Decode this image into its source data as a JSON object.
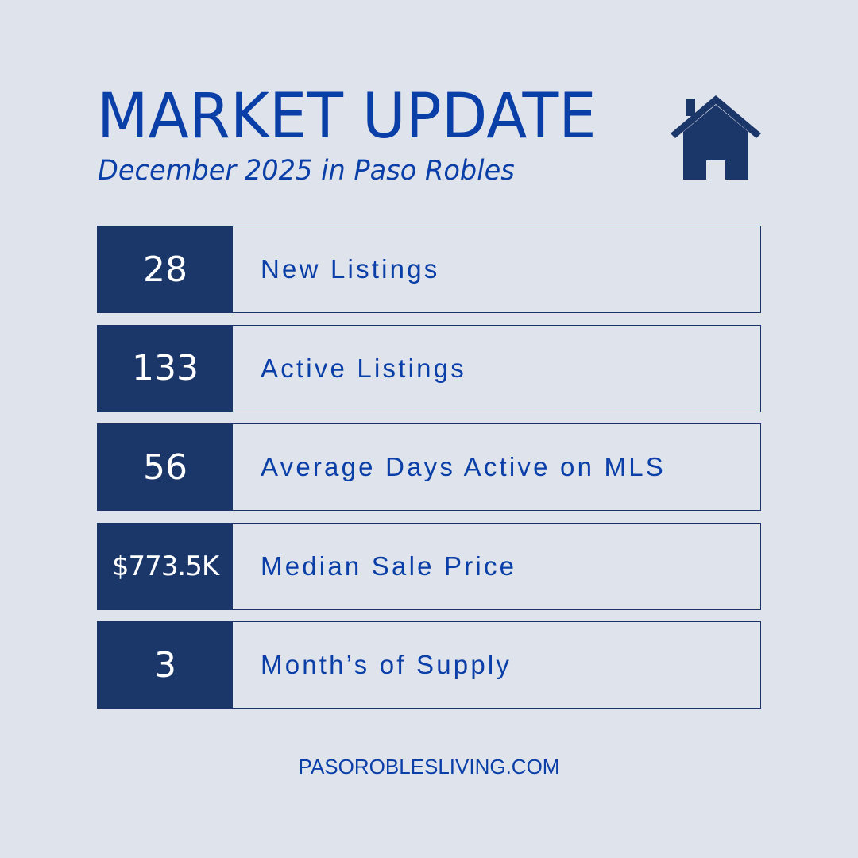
{
  "header": {
    "title": "MARKET UPDATE",
    "subtitle": "December 2025 in Paso Robles",
    "icon": "house-icon"
  },
  "stats": [
    {
      "value": "28",
      "label": "New Listings"
    },
    {
      "value": "133",
      "label": "Active Listings"
    },
    {
      "value": "56",
      "label": "Average Days Active on MLS"
    },
    {
      "value": "$773.5K",
      "label": "Median Sale Price"
    },
    {
      "value": "3",
      "label": "Month’s of Supply"
    }
  ],
  "footer": {
    "website": "PASOROBLESLIVING.COM"
  },
  "colors": {
    "background": "#dfe3ec",
    "navy": "#1b3668",
    "blue_text": "#0b3fa8"
  }
}
